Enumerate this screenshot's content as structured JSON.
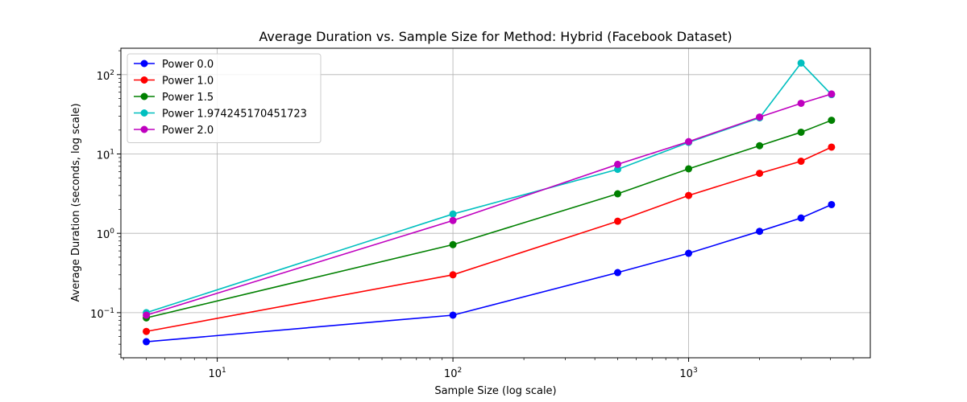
{
  "chart_data": {
    "type": "line",
    "title": "Average Duration vs. Sample Size for Method: Hybrid (Facebook Dataset)",
    "xlabel": "Sample Size (log scale)",
    "ylabel": "Average Duration (seconds, log scale)",
    "x_scale": "log",
    "y_scale": "log",
    "xlim": [
      3.9,
      5900
    ],
    "ylim": [
      0.027,
      215
    ],
    "x_ticks": [
      {
        "value": 10,
        "base": "10",
        "exp": "1"
      },
      {
        "value": 100,
        "base": "10",
        "exp": "2"
      },
      {
        "value": 1000,
        "base": "10",
        "exp": "3"
      }
    ],
    "y_ticks": [
      {
        "value": 0.1,
        "base": "10",
        "exp": "−1"
      },
      {
        "value": 1,
        "base": "10",
        "exp": "0"
      },
      {
        "value": 10,
        "base": "10",
        "exp": "1"
      },
      {
        "value": 100,
        "base": "10",
        "exp": "2"
      }
    ],
    "grid": true,
    "legend_position": "top-left",
    "x": [
      5,
      100,
      500,
      1000,
      2000,
      3000,
      4039
    ],
    "series": [
      {
        "name": "Power 0.0",
        "color": "#0000ff",
        "values": [
          0.043,
          0.093,
          0.32,
          0.56,
          1.06,
          1.56,
          2.3
        ]
      },
      {
        "name": "Power 1.0",
        "color": "#ff0000",
        "values": [
          0.058,
          0.3,
          1.42,
          3.0,
          5.7,
          8.1,
          12.2
        ]
      },
      {
        "name": "Power 1.5",
        "color": "#008000",
        "values": [
          0.086,
          0.72,
          3.15,
          6.5,
          12.7,
          18.8,
          26.6
        ]
      },
      {
        "name": "Power 1.974245170451723",
        "color": "#00bfbf",
        "values": [
          0.1,
          1.75,
          6.4,
          14.0,
          28.5,
          140,
          56
        ]
      },
      {
        "name": "Power 2.0",
        "color": "#bf00bf",
        "values": [
          0.093,
          1.45,
          7.4,
          14.3,
          29.2,
          43.5,
          57
        ]
      }
    ]
  }
}
